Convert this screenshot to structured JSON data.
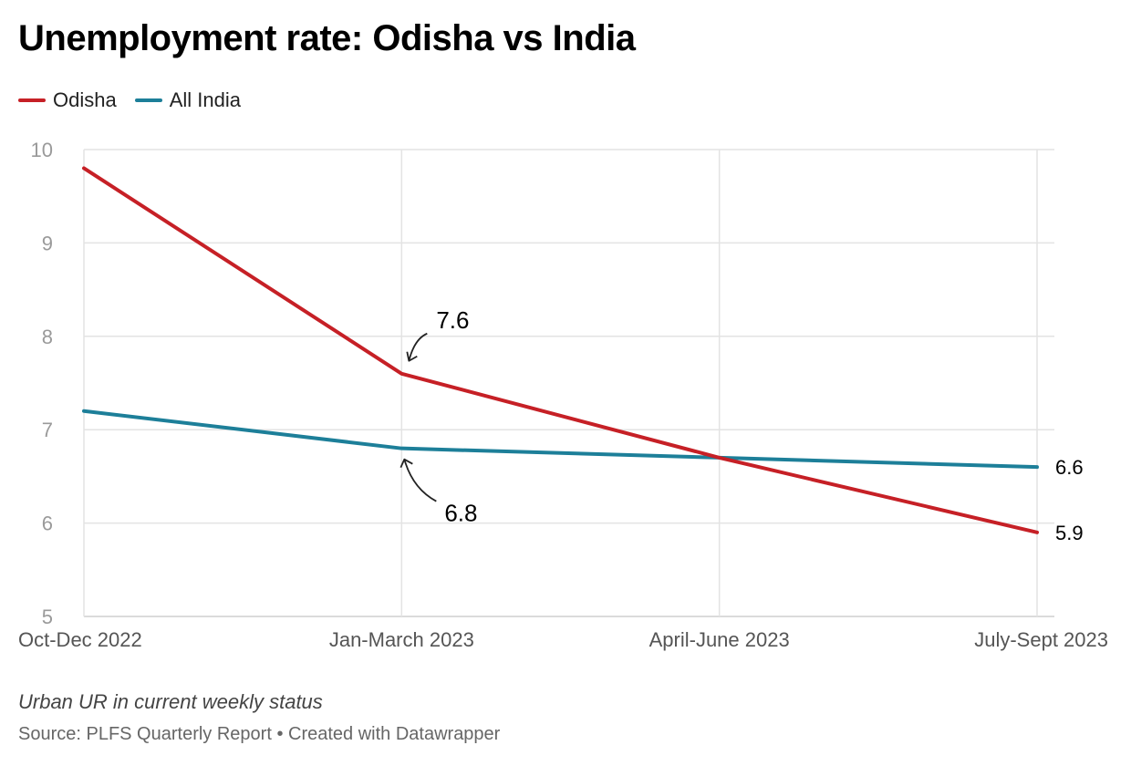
{
  "header": {
    "title": "Unemployment rate: Odisha vs India"
  },
  "legend": {
    "items": [
      {
        "label": "Odisha",
        "color": "#c62026"
      },
      {
        "label": "All India",
        "color": "#1d7f99"
      }
    ]
  },
  "footer": {
    "note": "Urban UR in current weekly status",
    "source": "Source: PLFS Quarterly Report • Created with Datawrapper"
  },
  "chart_data": {
    "type": "line",
    "title": "Unemployment rate: Odisha vs India",
    "xlabel": "",
    "ylabel": "",
    "categories": [
      "Oct-Dec 2022",
      "Jan-March 2023",
      "April-June 2023",
      "July-Sept 2023"
    ],
    "series": [
      {
        "name": "Odisha",
        "color": "#c62026",
        "values": [
          9.8,
          7.6,
          6.7,
          5.9
        ]
      },
      {
        "name": "All India",
        "color": "#1d7f99",
        "values": [
          7.2,
          6.8,
          6.7,
          6.6
        ]
      }
    ],
    "ylim": [
      5,
      10
    ],
    "yticks": [
      5,
      6,
      7,
      8,
      9,
      10
    ],
    "grid": true,
    "legend_position": "top-left",
    "annotations": [
      {
        "text": "7.6",
        "series": "Odisha",
        "category": "Jan-March 2023"
      },
      {
        "text": "6.8",
        "series": "All India",
        "category": "Jan-March 2023"
      }
    ],
    "end_labels": [
      {
        "text": "6.6",
        "series": "All India"
      },
      {
        "text": "5.9",
        "series": "Odisha"
      }
    ]
  }
}
